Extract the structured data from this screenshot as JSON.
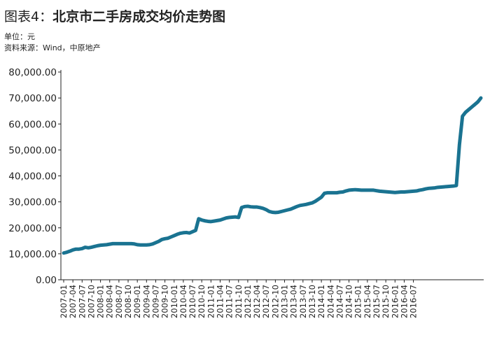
{
  "header": {
    "title_prefix": "图表4：",
    "title_main": "北京市二手房成交均价走势图",
    "unit": "单位：元",
    "source": "资料来源：Wind，中原地产"
  },
  "colors": {
    "series": "#1a7391",
    "axis": "#222222"
  },
  "chart_data": {
    "type": "line",
    "title": "北京市二手房成交均价走势图",
    "ylabel": "单位：元",
    "ylim": [
      0,
      80000
    ],
    "yticks": [
      "0.00",
      "10,000.00",
      "20,000.00",
      "30,000.00",
      "40,000.00",
      "50,000.00",
      "60,000.00",
      "70,000.00",
      "80,000.00"
    ],
    "xtick_labels": [
      "2007-01",
      "2007-04",
      "2007-07",
      "2007-10",
      "2008-01",
      "2008-04",
      "2008-07",
      "2008-10",
      "2009-01",
      "2009-04",
      "2009-07",
      "2009-10",
      "2010-01",
      "2010-04",
      "2010-07",
      "2010-10",
      "2011-01",
      "2011-04",
      "2011-07",
      "2011-10",
      "2012-01",
      "2012-04",
      "2012-07",
      "2012-10",
      "2013-01",
      "2013-04",
      "2013-07",
      "2013-10",
      "2014-01",
      "2014-04",
      "2014-07",
      "2014-10",
      "2015-01",
      "2015-04",
      "2015-07",
      "2015-10",
      "2016-01",
      "2016-04",
      "2016-07"
    ],
    "grid": false,
    "series": [
      {
        "values": [
          10300,
          10600,
          11000,
          11500,
          11800,
          11800,
          12000,
          12500,
          12300,
          12500,
          12800,
          13100,
          13300,
          13400,
          13500,
          13700,
          13900,
          13900,
          13900,
          13900,
          13900,
          13900,
          13900,
          13800,
          13500,
          13400,
          13400,
          13400,
          13500,
          13800,
          14300,
          14800,
          15500,
          15800,
          16000,
          16500,
          17000,
          17500,
          17900,
          18100,
          18200,
          18000,
          18500,
          19000,
          23500,
          23000,
          22700,
          22500,
          22400,
          22600,
          22800,
          23000,
          23400,
          23800,
          24000,
          24100,
          24200,
          24000,
          27800,
          28200,
          28300,
          28100,
          28000,
          28000,
          27800,
          27500,
          27000,
          26300,
          26000,
          25900,
          26000,
          26300,
          26600,
          26900,
          27200,
          27700,
          28200,
          28600,
          28800,
          29000,
          29300,
          29600,
          30200,
          31000,
          31800,
          33300,
          33500,
          33500,
          33500,
          33500,
          33700,
          33800,
          34200,
          34500,
          34600,
          34700,
          34600,
          34500,
          34500,
          34500,
          34500,
          34500,
          34300,
          34100,
          34000,
          33900,
          33800,
          33700,
          33600,
          33700,
          33800,
          33800,
          33900,
          34000,
          34100,
          34200,
          34500,
          34700,
          35000,
          35200,
          35300,
          35400,
          35600,
          35700,
          35800,
          35900,
          36000,
          36100,
          36300,
          52000,
          63000,
          64500,
          65500,
          66500,
          67500,
          68500,
          70000
        ]
      }
    ]
  }
}
